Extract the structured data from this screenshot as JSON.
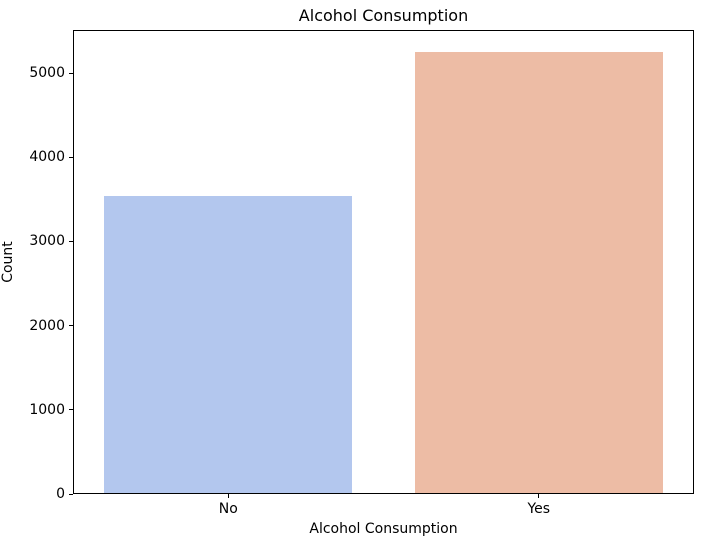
{
  "chart_data": {
    "type": "bar",
    "title": "Alcohol Consumption",
    "categories": [
      "No",
      "Yes"
    ],
    "values": [
      3535,
      5250
    ],
    "bar_colors": [
      "#b3c7ee",
      "#edbca5"
    ],
    "xlabel": "Alcohol Consumption",
    "ylabel": "Count",
    "ylim": [
      0,
      5512
    ],
    "yticks": [
      0,
      1000,
      2000,
      3000,
      4000,
      5000
    ],
    "grid": false,
    "legend": "none",
    "bar_width_fraction": 0.8,
    "spine_color": "#000000"
  }
}
